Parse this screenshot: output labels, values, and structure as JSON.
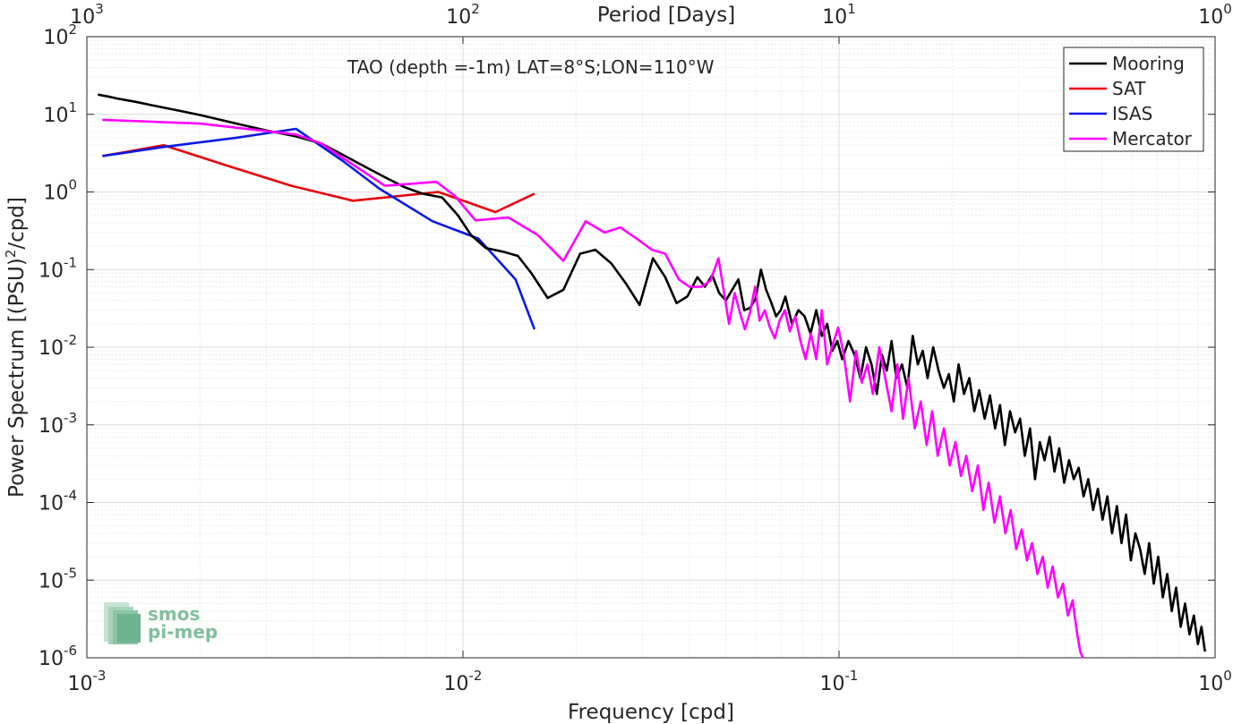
{
  "chart_data": {
    "type": "line",
    "title": "TAO (depth =-1m) LAT=8°S;LON=110°W",
    "xlabel": "Frequency [cpd]",
    "ylabel_main": "Power Spectrum [(PSU)",
    "ylabel_sup": "2",
    "ylabel_tail": "/cpd]",
    "top_axis_label": "Period [Days]",
    "x_scale": "log",
    "y_scale": "log",
    "xlim": [
      0.001,
      1
    ],
    "ylim": [
      1e-06,
      100
    ],
    "grid": true,
    "legend_position": "top-right",
    "x_ticks": [
      {
        "value": 0.001,
        "base": "10",
        "exp": "-3"
      },
      {
        "value": 0.01,
        "base": "10",
        "exp": "-2"
      },
      {
        "value": 0.1,
        "base": "10",
        "exp": "-1"
      },
      {
        "value": 1,
        "base": "10",
        "exp": "0"
      }
    ],
    "y_ticks": [
      {
        "value": 100,
        "base": "10",
        "exp": "2"
      },
      {
        "value": 10,
        "base": "10",
        "exp": "1"
      },
      {
        "value": 1,
        "base": "10",
        "exp": "0"
      },
      {
        "value": 0.1,
        "base": "10",
        "exp": "-1"
      },
      {
        "value": 0.01,
        "base": "10",
        "exp": "-2"
      },
      {
        "value": 0.001,
        "base": "10",
        "exp": "-3"
      },
      {
        "value": 0.0001,
        "base": "10",
        "exp": "-4"
      },
      {
        "value": 1e-05,
        "base": "10",
        "exp": "-5"
      },
      {
        "value": 1e-06,
        "base": "10",
        "exp": "-6"
      }
    ],
    "top_ticks": [
      {
        "freq": 0.001,
        "base": "10",
        "exp": "3"
      },
      {
        "freq": 0.01,
        "base": "10",
        "exp": "2"
      },
      {
        "freq": 0.1,
        "base": "10",
        "exp": "1"
      },
      {
        "freq": 1,
        "base": "10",
        "exp": "0"
      }
    ],
    "series": [
      {
        "name": "Mooring",
        "color": "#000000",
        "x": [
          0.00107,
          0.0011,
          0.00115,
          0.0012,
          0.00135,
          0.0015,
          0.00175,
          0.002,
          0.0025,
          0.003,
          0.0036,
          0.0042,
          0.0048,
          0.0055,
          0.0062,
          0.007,
          0.0078,
          0.0088,
          0.0097,
          0.0105,
          0.0115,
          0.0128,
          0.014,
          0.0152,
          0.0168,
          0.0185,
          0.0205,
          0.0225,
          0.0248,
          0.0272,
          0.0295,
          0.032,
          0.0345,
          0.037,
          0.0395,
          0.042,
          0.044,
          0.046,
          0.048,
          0.05,
          0.052,
          0.054,
          0.056,
          0.058,
          0.06,
          0.062,
          0.064,
          0.066,
          0.068,
          0.07,
          0.072,
          0.075,
          0.078,
          0.081,
          0.084,
          0.087,
          0.09,
          0.093,
          0.096,
          0.099,
          0.102,
          0.106,
          0.11,
          0.114,
          0.118,
          0.122,
          0.126,
          0.13,
          0.134,
          0.138,
          0.142,
          0.147,
          0.152,
          0.157,
          0.162,
          0.167,
          0.172,
          0.178,
          0.184,
          0.19,
          0.196,
          0.202,
          0.208,
          0.215,
          0.222,
          0.229,
          0.236,
          0.244,
          0.252,
          0.26,
          0.268,
          0.276,
          0.285,
          0.294,
          0.303,
          0.312,
          0.322,
          0.332,
          0.342,
          0.352,
          0.363,
          0.374,
          0.385,
          0.397,
          0.409,
          0.421,
          0.434,
          0.447,
          0.46,
          0.474,
          0.488,
          0.502,
          0.517,
          0.532,
          0.548,
          0.564,
          0.58,
          0.597,
          0.614,
          0.632,
          0.65,
          0.668,
          0.687,
          0.706,
          0.726,
          0.746,
          0.767,
          0.788,
          0.81,
          0.832,
          0.855,
          0.878,
          0.9,
          0.92,
          0.94
        ],
        "y": [
          18,
          17.5,
          16.8,
          16,
          14.5,
          13,
          11.2,
          9.8,
          7.6,
          6.2,
          5.2,
          4.2,
          3.0,
          2.1,
          1.55,
          1.15,
          0.95,
          0.85,
          0.5,
          0.28,
          0.19,
          0.17,
          0.15,
          0.09,
          0.043,
          0.055,
          0.16,
          0.18,
          0.12,
          0.065,
          0.035,
          0.14,
          0.08,
          0.037,
          0.045,
          0.08,
          0.06,
          0.085,
          0.05,
          0.04,
          0.055,
          0.075,
          0.03,
          0.032,
          0.042,
          0.1,
          0.055,
          0.038,
          0.025,
          0.03,
          0.045,
          0.02,
          0.03,
          0.025,
          0.015,
          0.03,
          0.014,
          0.02,
          0.009,
          0.012,
          0.007,
          0.012,
          0.008,
          0.004,
          0.01,
          0.006,
          0.0025,
          0.008,
          0.005,
          0.012,
          0.004,
          0.006,
          0.003,
          0.014,
          0.006,
          0.009,
          0.004,
          0.01,
          0.005,
          0.003,
          0.0045,
          0.002,
          0.006,
          0.0025,
          0.004,
          0.0015,
          0.0028,
          0.0012,
          0.0024,
          0.0009,
          0.0018,
          0.00055,
          0.0015,
          0.0008,
          0.0012,
          0.0004,
          0.0009,
          0.0002,
          0.0006,
          0.00035,
          0.0007,
          0.00025,
          0.0005,
          0.00018,
          0.00035,
          0.0002,
          0.00028,
          0.00012,
          0.0002,
          8e-05,
          0.00015,
          6e-05,
          0.00012,
          4e-05,
          9e-05,
          3e-05,
          7e-05,
          1.8e-05,
          4e-05,
          2.5e-05,
          1.2e-05,
          3e-05,
          9e-06,
          2e-05,
          6e-06,
          1.2e-05,
          4e-06,
          8e-06,
          2.5e-06,
          5e-06,
          2e-06,
          3.5e-06,
          1.5e-06,
          2.5e-06,
          1.2e-06
        ]
      },
      {
        "name": "SAT",
        "color": "#e8000b",
        "x": [
          0.0011,
          0.0016,
          0.0025,
          0.0035,
          0.0051,
          0.0086,
          0.0122,
          0.0155
        ],
        "y": [
          2.9,
          4.0,
          2.0,
          1.2,
          0.77,
          1.0,
          0.55,
          0.95
        ]
      },
      {
        "name": "ISAS",
        "color": "#0a19e6",
        "x": [
          0.0011,
          0.0016,
          0.0025,
          0.0036,
          0.0048,
          0.006,
          0.0083,
          0.011,
          0.0138,
          0.0155
        ],
        "y": [
          2.9,
          3.8,
          5.0,
          6.5,
          2.5,
          1.1,
          0.42,
          0.25,
          0.075,
          0.017
        ]
      },
      {
        "name": "Mercator",
        "color": "#ff00ff",
        "x": [
          0.0011,
          0.002,
          0.0036,
          0.0042,
          0.0062,
          0.0085,
          0.0095,
          0.0108,
          0.0132,
          0.0158,
          0.0185,
          0.0212,
          0.0238,
          0.0262,
          0.029,
          0.0318,
          0.0345,
          0.0375,
          0.04,
          0.043,
          0.0455,
          0.0478,
          0.0495,
          0.051,
          0.0528,
          0.0545,
          0.0562,
          0.058,
          0.0598,
          0.0615,
          0.0635,
          0.0655,
          0.0675,
          0.0695,
          0.0718,
          0.074,
          0.0765,
          0.079,
          0.0815,
          0.0842,
          0.087,
          0.09,
          0.093,
          0.096,
          0.0995,
          0.103,
          0.107,
          0.111,
          0.115,
          0.119,
          0.123,
          0.128,
          0.133,
          0.138,
          0.143,
          0.148,
          0.153,
          0.159,
          0.165,
          0.171,
          0.177,
          0.183,
          0.19,
          0.197,
          0.204,
          0.211,
          0.218,
          0.226,
          0.234,
          0.242,
          0.25,
          0.259,
          0.268,
          0.277,
          0.286,
          0.296,
          0.306,
          0.316,
          0.326,
          0.337,
          0.348,
          0.359,
          0.37,
          0.382,
          0.394,
          0.406,
          0.418,
          0.43,
          0.438,
          0.445
        ],
        "y": [
          8.5,
          7.6,
          5.5,
          4.2,
          1.2,
          1.35,
          0.9,
          0.43,
          0.47,
          0.28,
          0.13,
          0.42,
          0.3,
          0.35,
          0.25,
          0.18,
          0.16,
          0.075,
          0.06,
          0.06,
          0.072,
          0.14,
          0.05,
          0.02,
          0.05,
          0.028,
          0.017,
          0.028,
          0.06,
          0.022,
          0.03,
          0.018,
          0.013,
          0.022,
          0.03,
          0.016,
          0.025,
          0.012,
          0.007,
          0.015,
          0.007,
          0.03,
          0.006,
          0.0105,
          0.018,
          0.008,
          0.002,
          0.009,
          0.0035,
          0.006,
          0.0025,
          0.01,
          0.0038,
          0.0015,
          0.006,
          0.0012,
          0.004,
          0.0009,
          0.002,
          0.00055,
          0.0015,
          0.0004,
          0.0009,
          0.0003,
          0.0006,
          0.00022,
          0.0004,
          0.00014,
          0.0003,
          8e-05,
          0.00018,
          5.5e-05,
          0.00012,
          4e-05,
          8e-05,
          2.5e-05,
          4.5e-05,
          1.8e-05,
          3e-05,
          1.2e-05,
          2e-05,
          8e-06,
          1.5e-05,
          6e-06,
          9e-06,
          3.5e-06,
          5.5e-06,
          2e-06,
          1.2e-06,
          1e-06
        ]
      }
    ]
  },
  "logo": {
    "line1": "smos",
    "line2": "pi-mep",
    "color": "#7fbf9f"
  }
}
